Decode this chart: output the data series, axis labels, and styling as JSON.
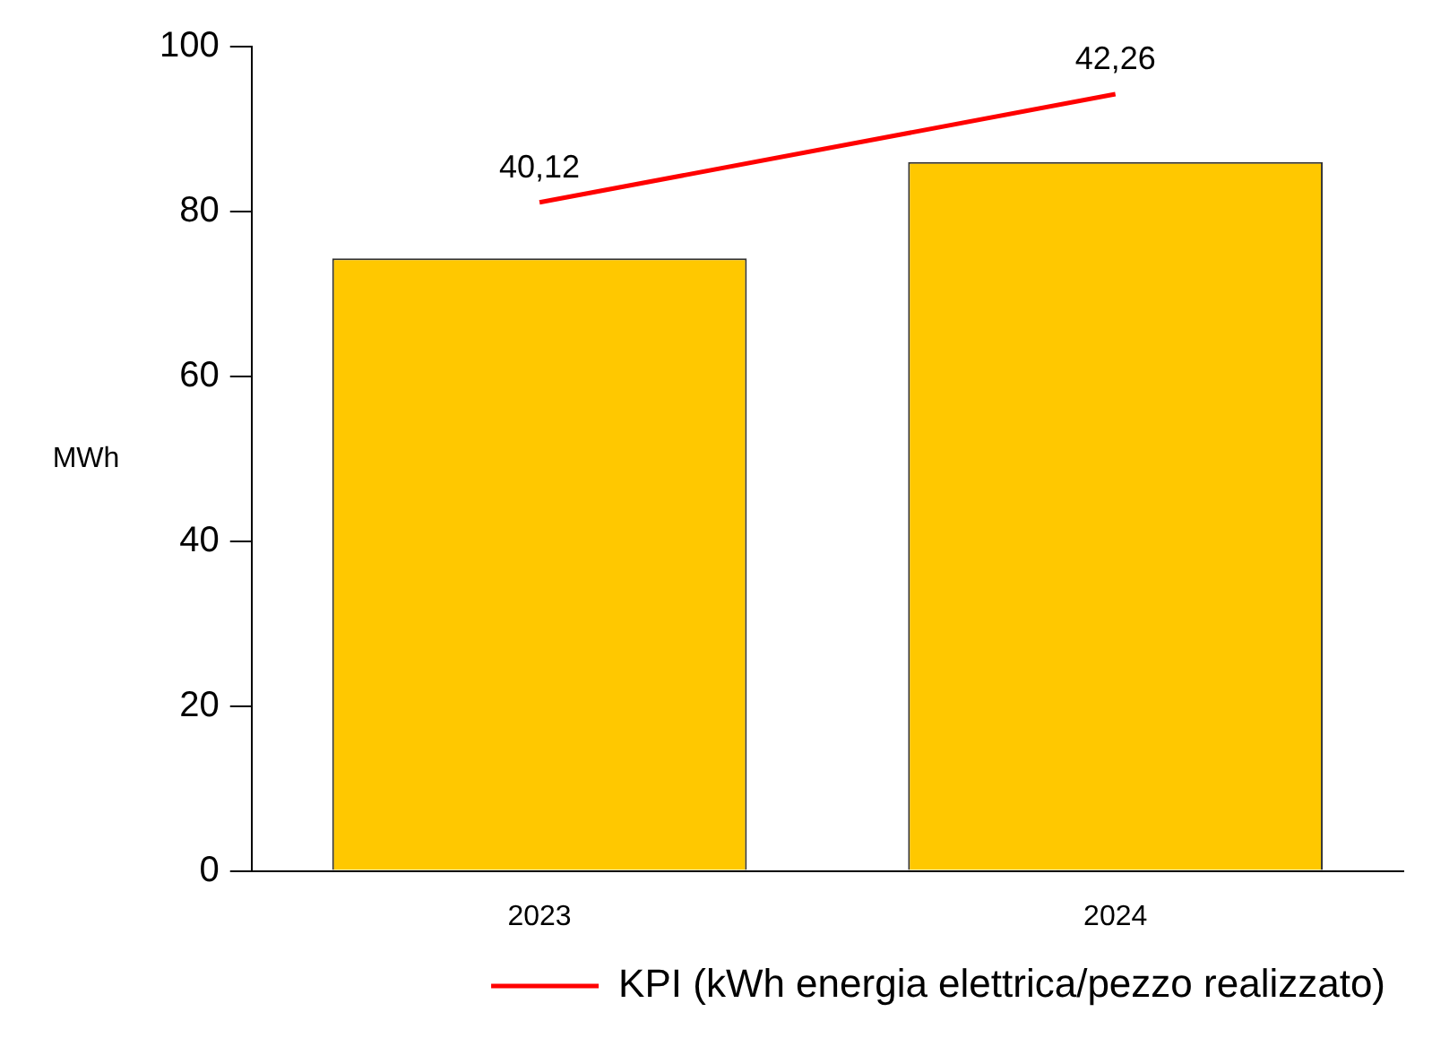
{
  "chart_data": {
    "type": "bar",
    "ylabel": "MWh",
    "categories": [
      "2023",
      "2024"
    ],
    "series": [
      {
        "color": "#ffc800",
        "values": [
          74.3,
          86.0
        ]
      },
      {
        "type": "line",
        "name": "KPI (kWh energia elettrica/pezzo realizzato)",
        "color": "#ff0000",
        "axis": "y2",
        "values": [
          40.12,
          42.26
        ],
        "value_labels": [
          "40,12",
          "42,26"
        ]
      }
    ],
    "ylim": [
      0,
      100
    ],
    "yticks": [
      0,
      20,
      40,
      60,
      80,
      100
    ],
    "y2lim": [
      26.9,
      43.2
    ],
    "grid": false,
    "legend": "bottom",
    "marker": "none"
  }
}
